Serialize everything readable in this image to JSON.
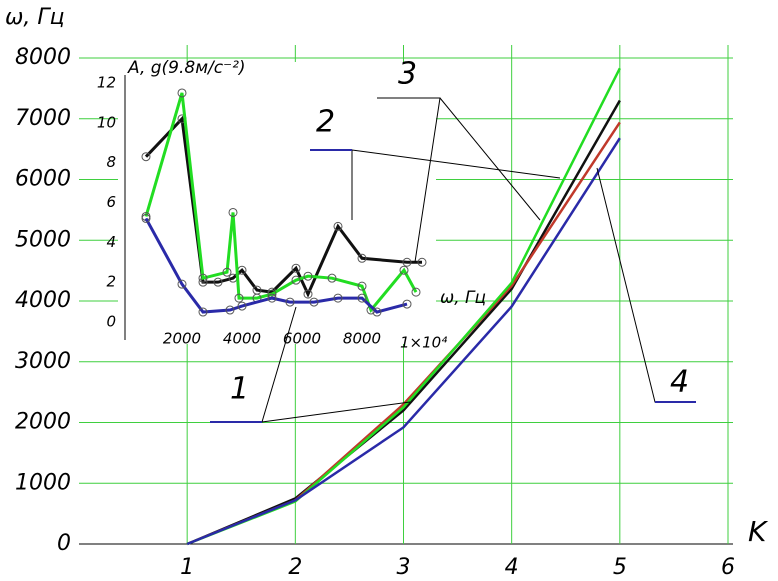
{
  "chart_data": [
    {
      "type": "line",
      "y_label": "ω, Гц",
      "x_label": "K",
      "x": [
        1,
        2,
        3,
        4,
        5
      ],
      "xlim": [
        0,
        6
      ],
      "xticks": [
        1,
        2,
        3,
        4,
        5,
        6
      ],
      "ylim": [
        0,
        8000
      ],
      "yticks": [
        0,
        1000,
        2000,
        3000,
        4000,
        5000,
        6000,
        7000,
        8000
      ],
      "grid": true,
      "grid_color": "#3fcf3f",
      "series": [
        {
          "color": "#111111",
          "values": [
            0,
            750,
            2200,
            4200,
            7300
          ]
        },
        {
          "color": "#c0392b",
          "values": [
            0,
            720,
            2300,
            4250,
            6940
          ]
        },
        {
          "color": "#22dd22",
          "values": [
            0,
            700,
            2250,
            4300,
            7830
          ]
        },
        {
          "color": "#2a2aa8",
          "values": [
            0,
            720,
            1920,
            3910,
            6680
          ]
        }
      ],
      "annotations": [
        "1",
        "2",
        "3",
        "4"
      ]
    },
    {
      "type": "line",
      "title": "A, g(9.8м/с⁻²)",
      "x_label": "ω, Гц",
      "x_multiplier": "1×10⁴",
      "xlim": [
        0,
        10000
      ],
      "xticks": [
        2000,
        4000,
        6000,
        8000
      ],
      "ylim": [
        0,
        12
      ],
      "yticks": [
        0,
        2,
        4,
        6,
        8,
        10,
        12
      ],
      "grid": false,
      "series": [
        {
          "color": "#111111",
          "x": [
            800,
            2000,
            2700,
            3200,
            3700,
            4000,
            4500,
            5000,
            5800,
            6200,
            7200,
            8000,
            9500,
            10000
          ],
          "values": [
            8.3,
            10.2,
            2,
            2,
            2.2,
            2.6,
            1.6,
            1.5,
            2.7,
            1.4,
            4.8,
            3.2,
            3.0,
            3.0
          ]
        },
        {
          "color": "#22dd22",
          "x": [
            800,
            2000,
            2700,
            3500,
            3700,
            3900,
            4500,
            5000,
            5800,
            6200,
            7000,
            8000,
            8300,
            9400,
            9800
          ],
          "values": [
            5.3,
            11.5,
            2.2,
            2.5,
            5.5,
            1.2,
            1.2,
            1.4,
            2.1,
            2.3,
            2.2,
            1.8,
            0.6,
            2.6,
            1.5
          ]
        },
        {
          "color": "#2a2aa8",
          "x": [
            800,
            2000,
            2700,
            3600,
            4000,
            5000,
            5600,
            6400,
            7200,
            8000,
            8500,
            9500
          ],
          "values": [
            5.2,
            1.9,
            0.5,
            0.6,
            0.8,
            1.2,
            1.0,
            1.0,
            1.2,
            1.2,
            0.5,
            0.9
          ]
        }
      ]
    }
  ]
}
